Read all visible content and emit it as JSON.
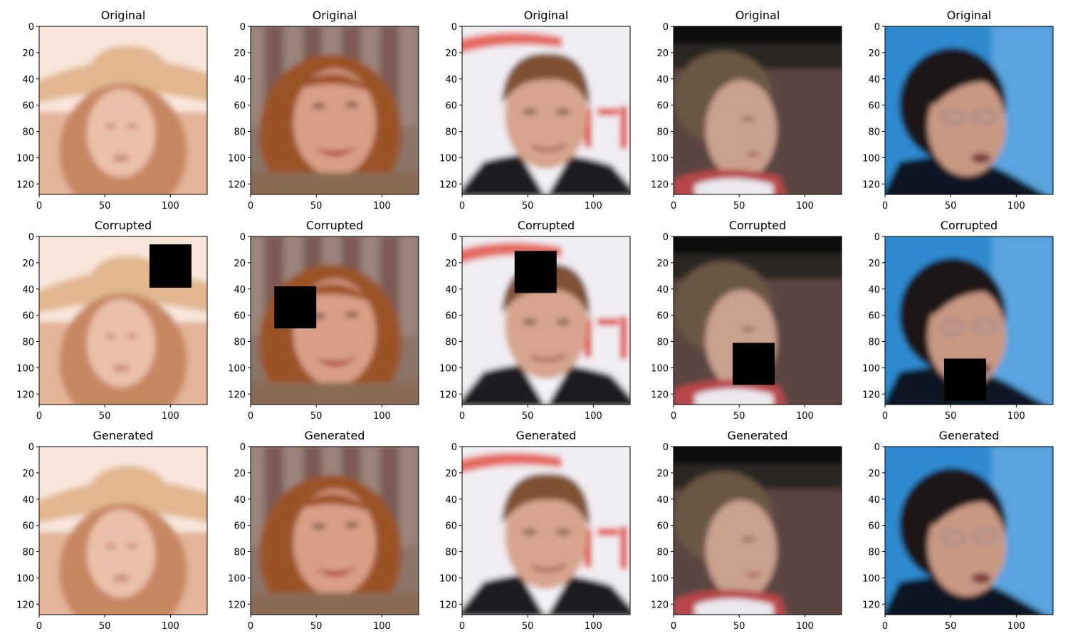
{
  "figure": {
    "row_titles": [
      "Original",
      "Corrupted",
      "Generated"
    ],
    "x_ticks": [
      "0",
      "50",
      "100"
    ],
    "y_ticks": [
      "0",
      "20",
      "40",
      "60",
      "80",
      "100",
      "120"
    ],
    "x_tick_values": [
      0,
      50,
      100
    ],
    "y_tick_values": [
      0,
      20,
      40,
      60,
      80,
      100,
      120
    ],
    "image_extent": [
      0,
      128
    ],
    "columns": [
      {
        "scene": "woman in wide-brimmed straw hat, washed-out peach tones",
        "palette": {
          "bg": "#f8e6da",
          "mid": "#e4b498",
          "skin": "#ebbfa9",
          "hair": "#c78764",
          "hat": "#e2b790",
          "dark": "#a66c52"
        },
        "mask": {
          "x": [
            84,
            116
          ],
          "y": [
            6,
            39
          ]
        }
      },
      {
        "scene": "smiling woman with auburn hair in front of bookshelves",
        "palette": {
          "bg": "#8a7468",
          "mid": "#b49a8c",
          "skin": "#d99f86",
          "hair": "#9b5327",
          "hat": "#6e4a3a",
          "dark": "#3c2a24"
        },
        "mask": {
          "x": [
            18,
            50
          ],
          "y": [
            38,
            70
          ]
        }
      },
      {
        "scene": "man with brown hair in dark suit, white backdrop with red lettering",
        "palette": {
          "bg": "#f1eef3",
          "mid": "#d56658",
          "skin": "#d7a48d",
          "hair": "#7f5130",
          "hat": "#e24a3d",
          "dark": "#1c1c24"
        },
        "mask": {
          "x": [
            40,
            72
          ],
          "y": [
            11,
            43
          ]
        }
      },
      {
        "scene": "young woman with pulled-back hair, dark background, red white blue outfit",
        "palette": {
          "bg": "#2a2522",
          "mid": "#5a4540",
          "skin": "#caa08f",
          "hair": "#6b5644",
          "hat": "#b8454a",
          "dark": "#12100f"
        },
        "mask": {
          "x": [
            45,
            77
          ],
          "y": [
            81,
            113
          ]
        }
      },
      {
        "scene": "woman with glasses and short dark hair against blue background",
        "palette": {
          "bg": "#2f8bd0",
          "mid": "#3a78b8",
          "skin": "#c99883",
          "hair": "#1a1618",
          "hat": "#5aa4df",
          "dark": "#0e1420"
        },
        "mask": {
          "x": [
            45,
            77
          ],
          "y": [
            93,
            125
          ]
        }
      }
    ]
  }
}
